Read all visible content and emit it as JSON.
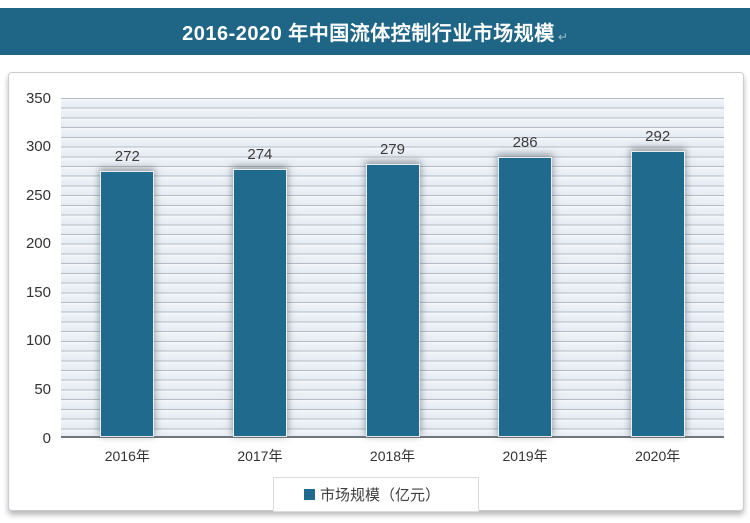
{
  "header": {
    "title": "2016-2020 年中国流体控制行业市场规模",
    "paragraph_mark": "↵",
    "background_color": "#1f6585",
    "text_color": "#ffffff"
  },
  "chart_data": {
    "type": "bar",
    "title": "2016-2020 年中国流体控制行业市场规模",
    "categories": [
      "2016年",
      "2017年",
      "2018年",
      "2019年",
      "2020年"
    ],
    "values": [
      272,
      274,
      279,
      286,
      292
    ],
    "series_name": "市场规模（亿元）",
    "xlabel": "",
    "ylabel": "",
    "ylim": [
      0,
      350
    ],
    "y_ticks": [
      0,
      50,
      100,
      150,
      200,
      250,
      300,
      350
    ],
    "grid": "horizontal minor lines every 10 units on striped light-blue background",
    "legend_position": "bottom-center",
    "bar_color": "#1f6a8d",
    "data_label_color": "#3c3c3c"
  },
  "legend": {
    "marker_color": "#1f6a8d",
    "label": "市场规模（亿元）"
  }
}
